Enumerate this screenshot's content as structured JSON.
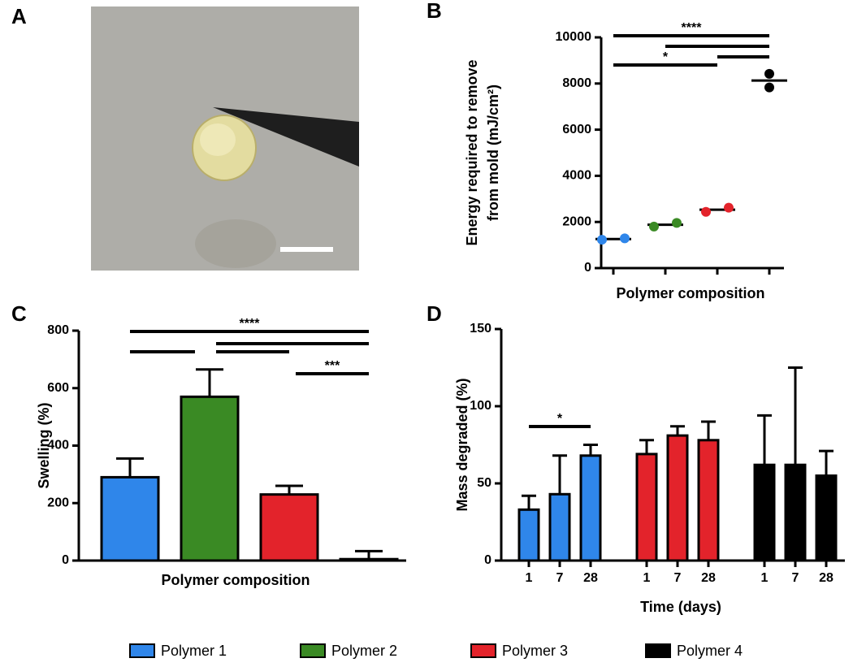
{
  "panel_labels": [
    "A",
    "B",
    "C",
    "D"
  ],
  "legend": [
    {
      "name": "Polymer 1",
      "color": "#2f86ea"
    },
    {
      "name": "Polymer 2",
      "color": "#3a8a24"
    },
    {
      "name": "Polymer 3",
      "color": "#e3232b"
    },
    {
      "name": "Polymer 4",
      "color": "#000000"
    }
  ],
  "chart_data": [
    {
      "type": "dot",
      "categories": [
        null,
        null,
        null,
        null
      ],
      "colors": [
        "#2f86ea",
        "#3a8a24",
        "#e3232b",
        "#000000"
      ],
      "values": [
        [
          1230,
          1290
        ],
        [
          1800,
          1960
        ],
        [
          2440,
          2620
        ],
        [
          8350,
          7900
        ]
      ],
      "means": [
        1260,
        1880,
        2530,
        8130
      ],
      "ylabel_lines": [
        "Energy required to remove",
        "from mold (mJ/cm²)"
      ],
      "xlabel": "Polymer composition",
      "ylim": [
        0,
        10000
      ],
      "yticks": [
        0,
        2000,
        4000,
        6000,
        8000,
        10000
      ],
      "brackets": [
        {
          "from": 0,
          "to": 3,
          "label": "****"
        },
        {
          "from": 1,
          "to": 3
        },
        {
          "from": 2,
          "to": 3
        },
        {
          "from": 0,
          "to": 2,
          "label": "*"
        }
      ]
    },
    {
      "type": "bar",
      "categories": [
        null,
        null,
        null,
        null
      ],
      "colors": [
        "#2f86ea",
        "#3a8a24",
        "#e3232b",
        "#000000"
      ],
      "values": [
        290,
        570,
        230,
        5
      ],
      "errors": [
        65,
        95,
        30,
        28
      ],
      "ylabel": "Swelling (%)",
      "xlabel": "Polymer composition",
      "ylim": [
        0,
        800
      ],
      "yticks": [
        0,
        200,
        400,
        600,
        800
      ],
      "brackets": [
        {
          "from": 0,
          "to": 3,
          "label": "****"
        },
        {
          "from": 0,
          "to": 1
        },
        {
          "from": 1,
          "to": 3
        },
        {
          "from": 1,
          "to": 2
        },
        {
          "from": 2,
          "to": 3,
          "label": "***"
        }
      ]
    },
    {
      "type": "grouped_bar",
      "categories": [
        "1",
        "7",
        "28"
      ],
      "series": [
        {
          "color": "#2f86ea",
          "values": [
            33,
            43,
            68
          ],
          "errors": [
            9,
            25,
            7
          ]
        },
        {
          "color": "#e3232b",
          "values": [
            69,
            81,
            78
          ],
          "errors": [
            9,
            6,
            12
          ]
        },
        {
          "color": "#000000",
          "values": [
            62,
            62,
            55
          ],
          "errors": [
            32,
            63,
            16
          ]
        }
      ],
      "ylabel": "Mass degraded (%)",
      "xlabel": "Time (days)",
      "ylim": [
        0,
        150
      ],
      "yticks": [
        0,
        50,
        100,
        150
      ],
      "brackets": [
        {
          "series": 0,
          "from": 0,
          "to": 2,
          "label": "*"
        }
      ]
    }
  ]
}
